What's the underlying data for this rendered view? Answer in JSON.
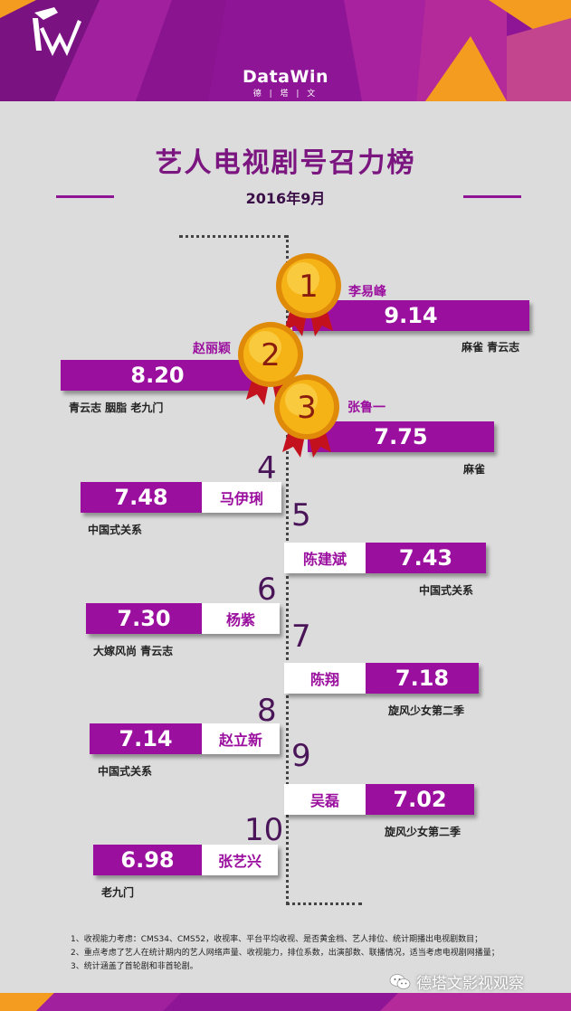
{
  "header": {
    "brand": "DataWin",
    "brand_sub": "德 | 塔 | 文"
  },
  "title": "艺人电视剧号召力榜",
  "subtitle": "2016年9月",
  "colors": {
    "purple": "#9a0f9e",
    "header_purple": "#8e1696",
    "orange": "#f39c1f",
    "background": "#dcdcdc"
  },
  "chart_data": {
    "type": "bar",
    "title": "艺人电视剧号召力榜",
    "subtitle": "2016年9月",
    "entries": [
      {
        "rank": "1",
        "name": "李易峰",
        "value": "9.14",
        "dramas": "麻雀 青云志"
      },
      {
        "rank": "2",
        "name": "赵丽颖",
        "value": "8.20",
        "dramas": "青云志 胭脂 老九门"
      },
      {
        "rank": "3",
        "name": "张鲁一",
        "value": "7.75",
        "dramas": "麻雀"
      },
      {
        "rank": "4",
        "name": "马伊琍",
        "value": "7.48",
        "dramas": "中国式关系"
      },
      {
        "rank": "5",
        "name": "陈建斌",
        "value": "7.43",
        "dramas": "中国式关系"
      },
      {
        "rank": "6",
        "name": "杨紫",
        "value": "7.30",
        "dramas": "大嫁风尚 青云志"
      },
      {
        "rank": "7",
        "name": "陈翔",
        "value": "7.18",
        "dramas": "旋风少女第二季"
      },
      {
        "rank": "8",
        "name": "赵立新",
        "value": "7.14",
        "dramas": "中国式关系"
      },
      {
        "rank": "9",
        "name": "吴磊",
        "value": "7.02",
        "dramas": "旋风少女第二季"
      },
      {
        "rank": "10",
        "name": "张艺兴",
        "value": "6.98",
        "dramas": "老九门"
      }
    ]
  },
  "notes": [
    "1、收视能力考虑：CMS34、CMS52，收视率、平台平均收视、是否黄金档、艺人排位、统计期播出电视剧数目；",
    "2、重点考虑了艺人在统计期内的艺人网络声量、收视能力，排位系数，出演部数、联播情况，适当考虑电视剧网播量；",
    "3、统计涵盖了首轮剧和非首轮剧。"
  ],
  "footer": {
    "wechat_label": "德塔文影视观察",
    "icon": "wechat-icon"
  }
}
